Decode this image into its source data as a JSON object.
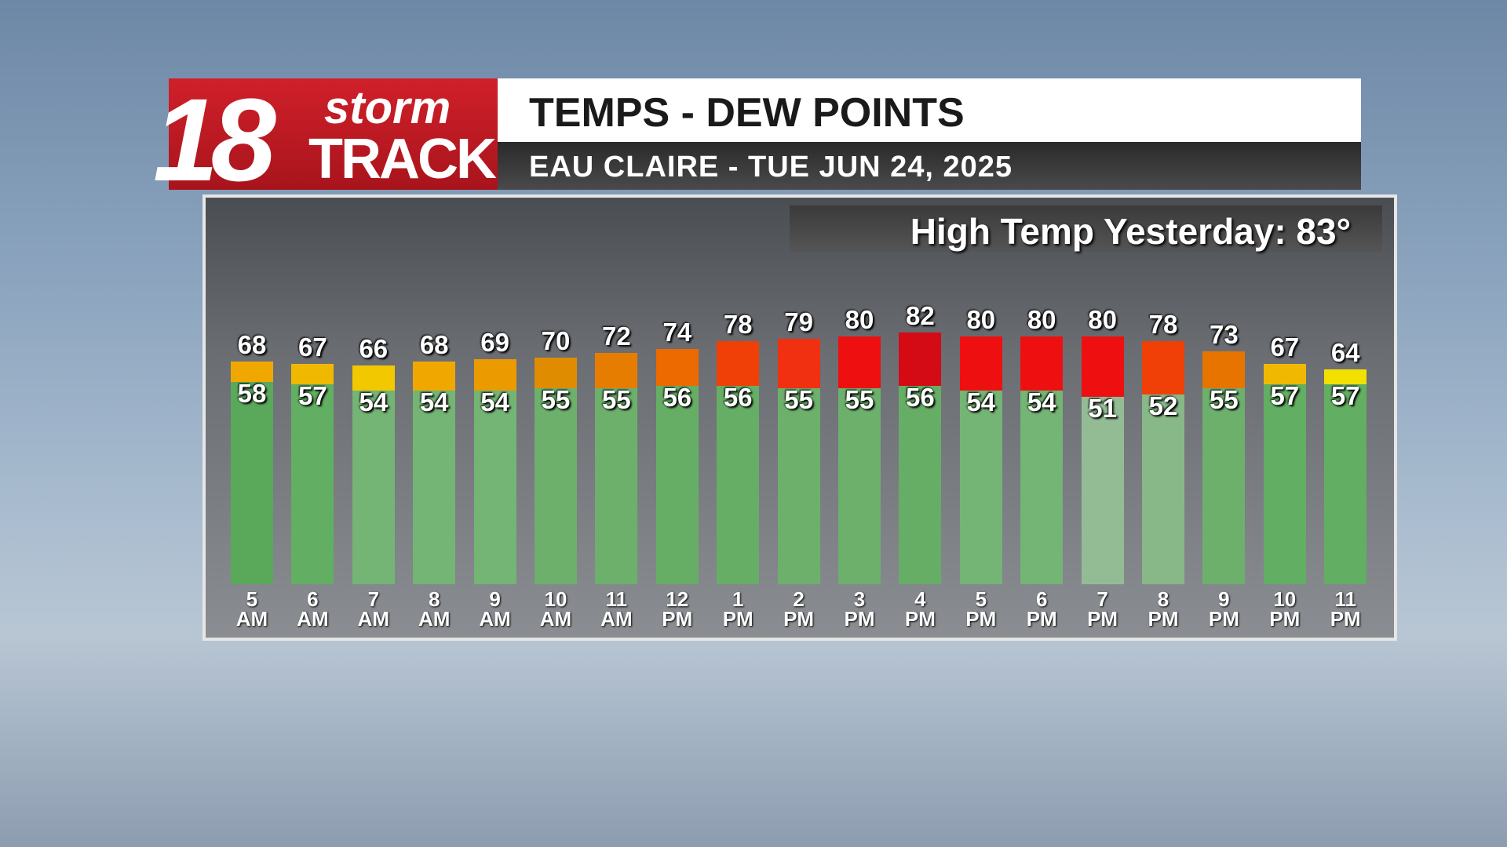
{
  "branding": {
    "number": "18",
    "word1": "storm",
    "word2": "TRACK"
  },
  "chart_data": {
    "type": "bar",
    "title": "TEMPS - DEW POINTS",
    "subtitle": "EAU CLAIRE - TUE JUN 24, 2025",
    "annotation": "High Temp Yesterday: 83°",
    "categories": [
      "5 AM",
      "6 AM",
      "7 AM",
      "8 AM",
      "9 AM",
      "10 AM",
      "11 AM",
      "12 PM",
      "1 PM",
      "2 PM",
      "3 PM",
      "4 PM",
      "5 PM",
      "6 PM",
      "7 PM",
      "8 PM",
      "9 PM",
      "10 PM",
      "11 PM"
    ],
    "ylim": [
      -40,
      90
    ],
    "series": [
      {
        "values": [
          68,
          67,
          66,
          68,
          69,
          70,
          72,
          74,
          78,
          79,
          80,
          82,
          80,
          80,
          80,
          78,
          73,
          67,
          64
        ],
        "colors": [
          "#f0a800",
          "#f0b800",
          "#f2c800",
          "#f0a800",
          "#eb9a00",
          "#e08c00",
          "#e67d00",
          "#ec6a00",
          "#f04008",
          "#f03010",
          "#ee1010",
          "#d40a14",
          "#ee1010",
          "#ee1010",
          "#ee1010",
          "#f04008",
          "#e87400",
          "#f0b800",
          "#f2e000"
        ]
      },
      {
        "values": [
          58,
          57,
          54,
          54,
          54,
          55,
          55,
          56,
          56,
          55,
          55,
          56,
          54,
          54,
          51,
          52,
          55,
          57,
          57
        ],
        "colors": [
          "#5aa85a",
          "#62ae62",
          "#74b474",
          "#74b474",
          "#74b474",
          "#6cb06c",
          "#6cb06c",
          "#66ae66",
          "#66ae66",
          "#6cb06c",
          "#6cb06c",
          "#66ae66",
          "#74b474",
          "#74b474",
          "#94bc94",
          "#88b888",
          "#6cb06c",
          "#62ae62",
          "#62ae62"
        ]
      }
    ]
  }
}
